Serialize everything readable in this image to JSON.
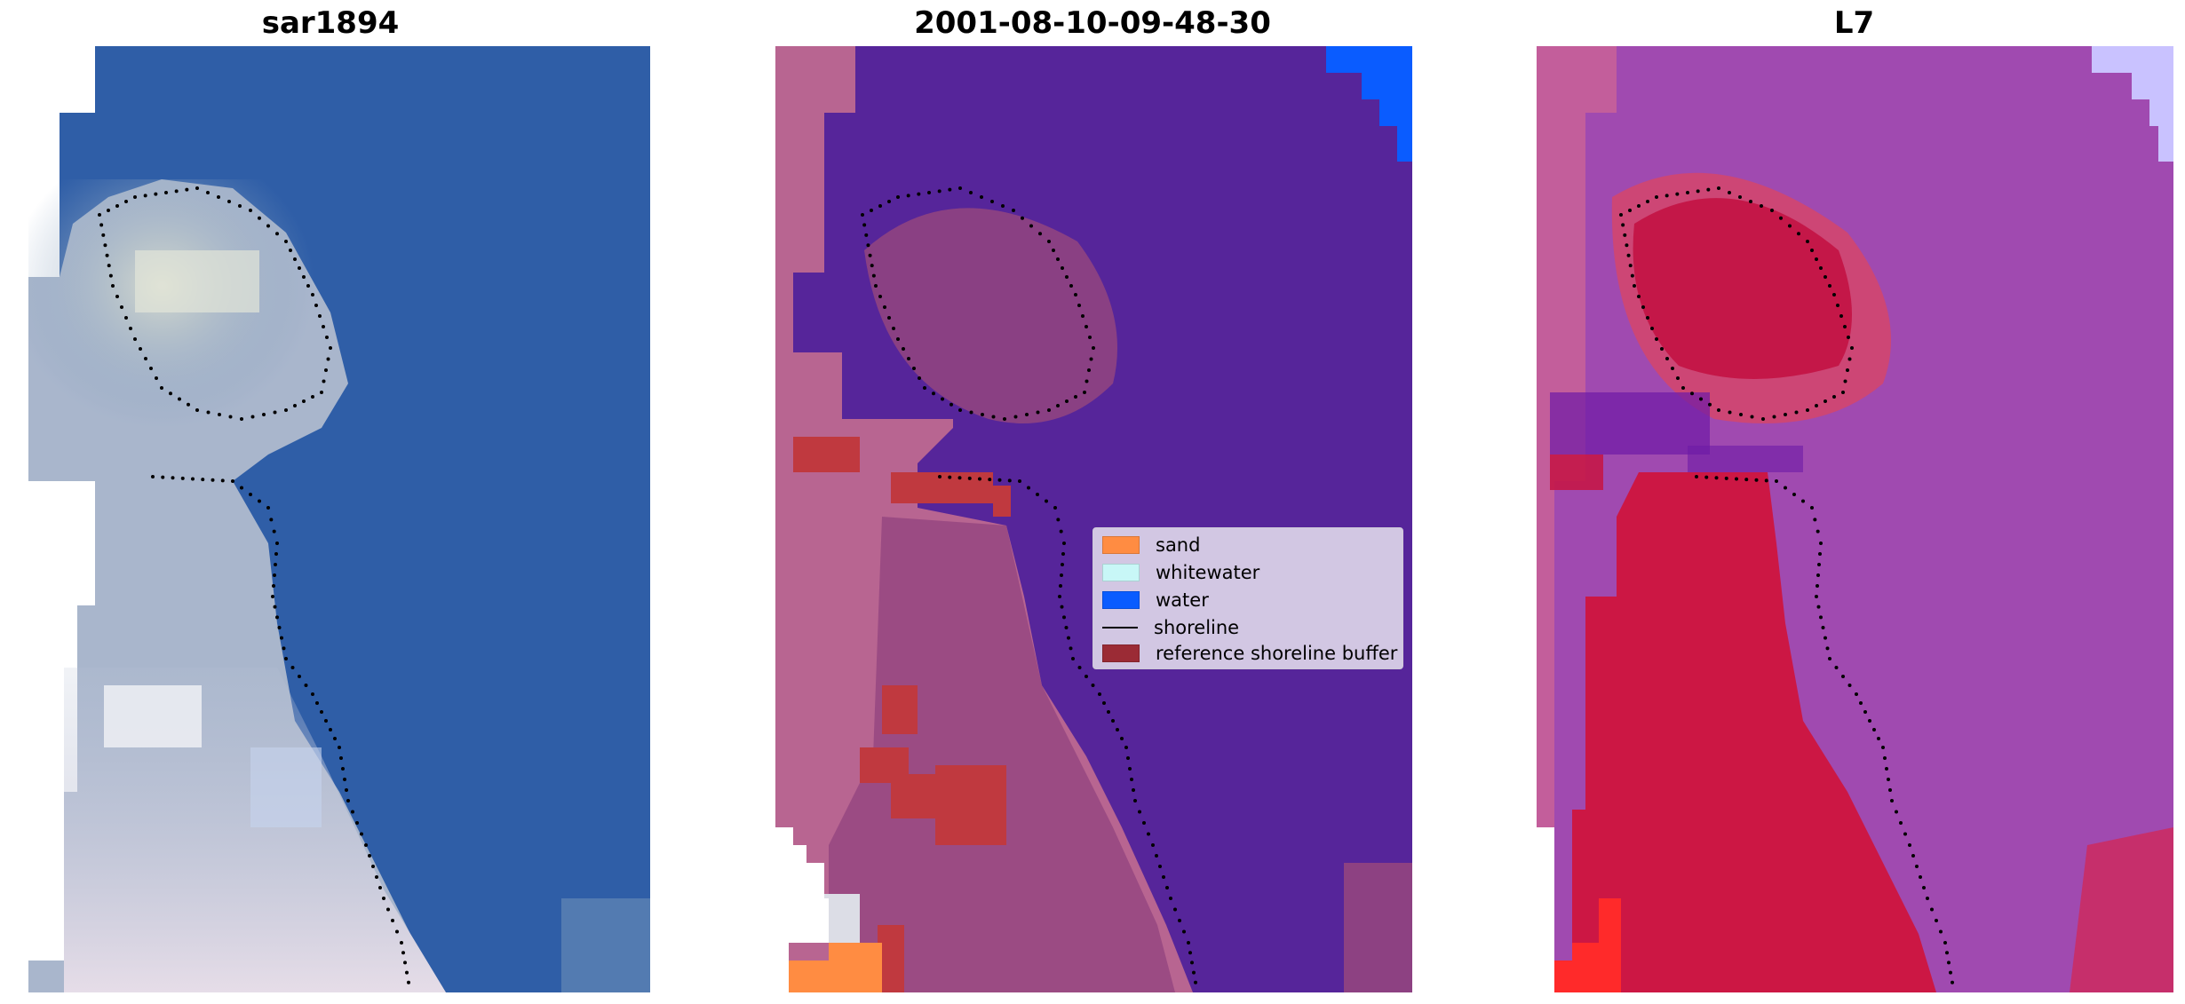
{
  "panels": [
    {
      "title": "sar1894",
      "style": "rgb"
    },
    {
      "title": "2001-08-10-09-48-30",
      "style": "classified"
    },
    {
      "title": "L7",
      "style": "index"
    }
  ],
  "legend": {
    "entries": [
      {
        "label": "sand",
        "color": "#ff8c42",
        "kind": "patch"
      },
      {
        "label": "whitewater",
        "color": "#c8f7f7",
        "kind": "patch"
      },
      {
        "label": "water",
        "color": "#0a5cff",
        "kind": "patch"
      },
      {
        "label": "shoreline",
        "color": "#000000",
        "kind": "line"
      },
      {
        "label": "reference shoreline buffer",
        "color": "#9b2b35",
        "kind": "patch"
      }
    ]
  },
  "colors": {
    "rgb_water": "#2e5da6",
    "rgb_land": "#c9c6d6",
    "class_water_purple": "#56259a",
    "class_land_pink": "#b86591",
    "class_buffer_red": "#c0393f",
    "index_land_red": "#cc1744",
    "index_water_violet": "#a04ab0"
  }
}
